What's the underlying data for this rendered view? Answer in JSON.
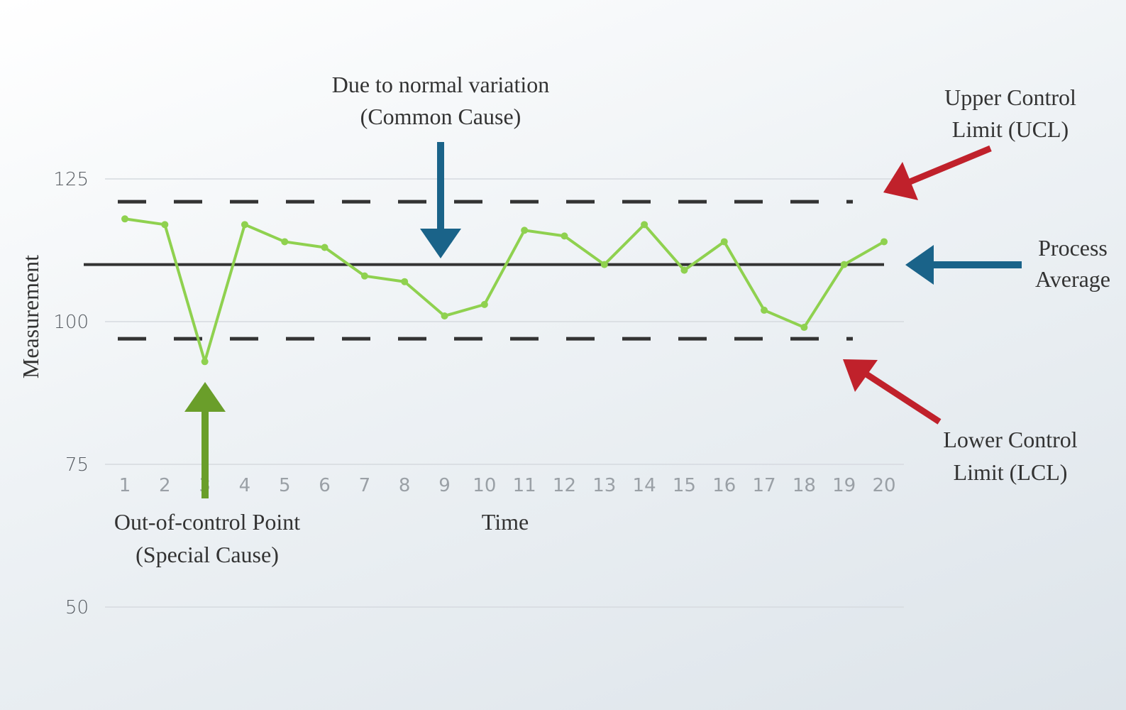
{
  "chart_data": {
    "type": "line",
    "xlabel": "Time",
    "ylabel": "Measurement",
    "ylim": [
      50,
      125
    ],
    "yticks": [
      50,
      75,
      100,
      125
    ],
    "grid": true,
    "x": [
      1,
      2,
      3,
      4,
      5,
      6,
      7,
      8,
      9,
      10,
      11,
      12,
      13,
      14,
      15,
      16,
      17,
      18,
      19,
      20
    ],
    "series": [
      {
        "values": [
          118,
          117,
          93,
          117,
          114,
          113,
          108,
          107,
          101,
          103,
          116,
          115,
          110,
          117,
          109,
          114,
          102,
          99,
          110,
          114
        ]
      }
    ],
    "reference_lines": {
      "ucl": 121,
      "process_average": 110,
      "lcl": 97
    },
    "annotations": {
      "common_cause": [
        "Due to normal variation",
        "(Common Cause)"
      ],
      "ucl": [
        "Upper Control",
        "Limit (UCL)"
      ],
      "process_average": [
        "Process",
        "Average"
      ],
      "lcl": [
        "Lower Control",
        "Limit (LCL)"
      ],
      "special_cause": [
        "Out-of-control Point",
        "(Special Cause)"
      ]
    },
    "colors": {
      "series": "#8fd14f",
      "reference": "#333333",
      "blue_arrow": "#1a6389",
      "red_arrow": "#c0212b",
      "green_arrow": "#6a9e2a",
      "grid": "#d6dadf"
    }
  }
}
